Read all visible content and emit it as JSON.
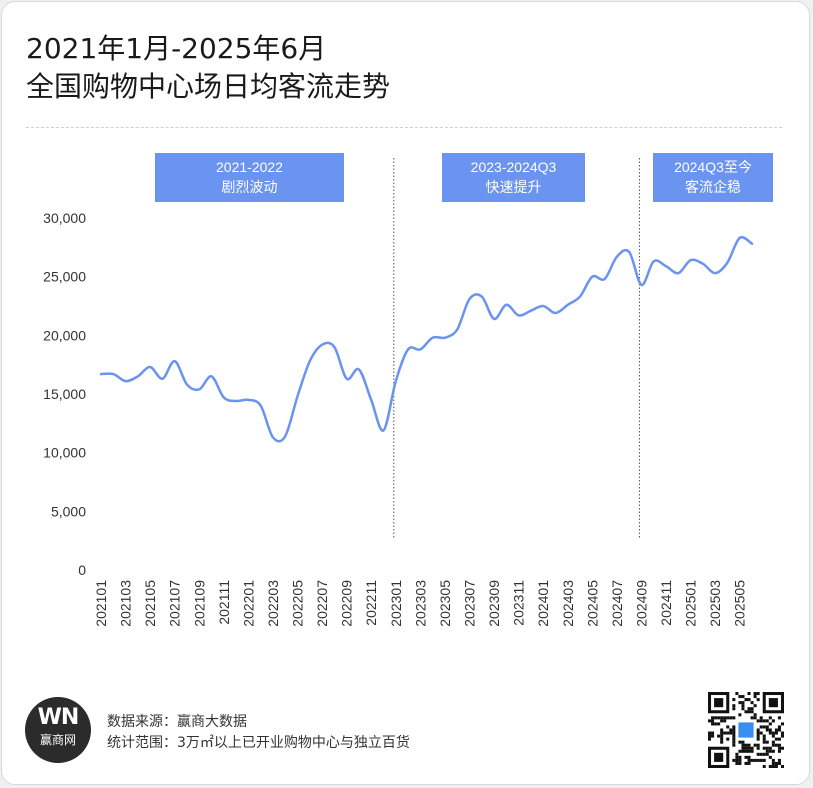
{
  "title": {
    "line1": "2021年1月-2025年6月",
    "line2": "全国购物中心场日均客流走势"
  },
  "phases": [
    {
      "line1": "2021-2022",
      "line2": "剧烈波动"
    },
    {
      "line1": "2023-2024Q3",
      "line2": "快速提升"
    },
    {
      "line1": "2024Q3至今",
      "line2": "客流企稳"
    }
  ],
  "colors": {
    "line": "#6b93f0",
    "phase_box": "#6b93f0",
    "phase_text": "#ffffff"
  },
  "chart_data": {
    "type": "line",
    "title": "全国购物中心场日均客流走势",
    "xlabel": "",
    "ylabel": "",
    "ylim": [
      0,
      30000
    ],
    "y_ticks": [
      0,
      5000,
      10000,
      15000,
      20000,
      25000,
      30000
    ],
    "y_tick_labels": [
      "0",
      "5,000",
      "10,000",
      "15,000",
      "20,000",
      "25,000",
      "30,000"
    ],
    "x": [
      "202101",
      "202102",
      "202103",
      "202104",
      "202105",
      "202106",
      "202107",
      "202108",
      "202109",
      "202110",
      "202111",
      "202112",
      "202201",
      "202202",
      "202203",
      "202204",
      "202205",
      "202206",
      "202207",
      "202208",
      "202209",
      "202210",
      "202211",
      "202212",
      "202301",
      "202302",
      "202303",
      "202304",
      "202305",
      "202306",
      "202307",
      "202308",
      "202309",
      "202310",
      "202311",
      "202312",
      "202401",
      "202402",
      "202403",
      "202404",
      "202405",
      "202406",
      "202407",
      "202408",
      "202409",
      "202410",
      "202411",
      "202412",
      "202501",
      "202502",
      "202503",
      "202504",
      "202505",
      "202506"
    ],
    "x_tick_labels": [
      "202101",
      "202103",
      "202105",
      "202107",
      "202109",
      "202111",
      "202201",
      "202203",
      "202205",
      "202207",
      "202209",
      "202211",
      "202301",
      "202303",
      "202305",
      "202307",
      "202309",
      "202311",
      "202401",
      "202403",
      "202405",
      "202407",
      "202409",
      "202411",
      "202501",
      "202503",
      "202505"
    ],
    "series": [
      {
        "values": [
          16700,
          16700,
          16100,
          16500,
          17300,
          16300,
          17800,
          15800,
          15400,
          16500,
          14700,
          14400,
          14500,
          14000,
          11300,
          11400,
          14800,
          17800,
          19200,
          19000,
          16300,
          17100,
          14500,
          11900,
          16100,
          18800,
          18800,
          19800,
          19800,
          20500,
          23100,
          23300,
          21400,
          22600,
          21700,
          22100,
          22500,
          21900,
          22600,
          23300,
          25000,
          24800,
          26700,
          27100,
          24300,
          26300,
          25900,
          25300,
          26400,
          26100,
          25300,
          26200,
          28300,
          27800
        ]
      }
    ],
    "vlines_at": [
      "202301",
      "202409"
    ],
    "grid": false,
    "legend": "none"
  },
  "footer": {
    "source": "数据来源：赢商大数据",
    "scope": "统计范围：3万㎡以上已开业购物中心与独立百货",
    "logo_mark": "WN",
    "logo_name": "赢商网"
  }
}
